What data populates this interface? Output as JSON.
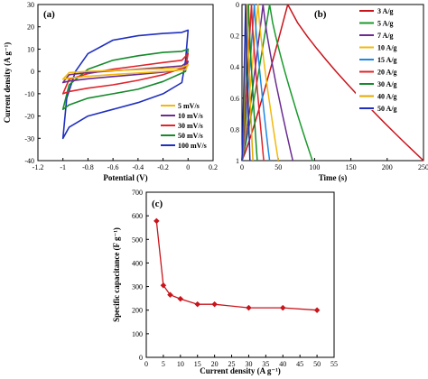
{
  "chart_data": [
    {
      "id": "a",
      "type": "line",
      "panel_label": "(a)",
      "xlabel": "Potential (V)",
      "ylabel": "Current density (A g⁻¹)",
      "xlim": [
        -1.2,
        0.2
      ],
      "ylim": [
        -40,
        30
      ],
      "xticks": [
        -1.2,
        -1.0,
        -0.8,
        -0.6,
        -0.4,
        -0.2,
        0.0,
        0.2
      ],
      "xticklabels": [
        "-1.2",
        "-1",
        "-0.8",
        "-0.6",
        "-0.4",
        "-0.2",
        "0",
        "0.2"
      ],
      "yticks": [
        -40,
        -30,
        -20,
        -10,
        0,
        10,
        20,
        30
      ],
      "yticklabels": [
        "-40",
        "-30",
        "-20",
        "-10",
        "0",
        "10",
        "20",
        "30"
      ],
      "legend_position": "bottom-right",
      "series": [
        {
          "name": "5 mV/s",
          "color": "#f2b90c",
          "top": [
            [
              -1.0,
              -3.5
            ],
            [
              -0.95,
              -0.5
            ],
            [
              -0.8,
              0.0
            ],
            [
              -0.6,
              0.4
            ],
            [
              -0.4,
              0.8
            ],
            [
              -0.2,
              1.2
            ],
            [
              -0.05,
              1.8
            ],
            [
              0.0,
              3.0
            ]
          ],
          "bottom": [
            [
              0.0,
              3.0
            ],
            [
              -0.02,
              0.8
            ],
            [
              -0.2,
              0.0
            ],
            [
              -0.4,
              -0.7
            ],
            [
              -0.6,
              -1.4
            ],
            [
              -0.8,
              -2.2
            ],
            [
              -0.95,
              -3.0
            ],
            [
              -1.0,
              -3.5
            ]
          ]
        },
        {
          "name": "10 mV/s",
          "color": "#6a2c91",
          "top": [
            [
              -1.0,
              -5.0
            ],
            [
              -0.95,
              -1.5
            ],
            [
              -0.8,
              -0.5
            ],
            [
              -0.6,
              0.3
            ],
            [
              -0.4,
              1.0
            ],
            [
              -0.2,
              1.8
            ],
            [
              -0.05,
              2.5
            ],
            [
              0.0,
              4.5
            ]
          ],
          "bottom": [
            [
              0.0,
              4.5
            ],
            [
              -0.02,
              1.0
            ],
            [
              -0.2,
              -0.3
            ],
            [
              -0.4,
              -1.3
            ],
            [
              -0.6,
              -2.3
            ],
            [
              -0.8,
              -3.3
            ],
            [
              -0.95,
              -4.3
            ],
            [
              -1.0,
              -5.0
            ]
          ]
        },
        {
          "name": "30 mV/s",
          "color": "#e0242b",
          "top": [
            [
              -1.0,
              -10.0
            ],
            [
              -0.95,
              -3.5
            ],
            [
              -0.8,
              -1.0
            ],
            [
              -0.6,
              1.0
            ],
            [
              -0.4,
              2.5
            ],
            [
              -0.2,
              4.0
            ],
            [
              -0.05,
              5.0
            ],
            [
              0.0,
              8.0
            ]
          ],
          "bottom": [
            [
              0.0,
              8.0
            ],
            [
              -0.02,
              2.0
            ],
            [
              -0.2,
              -1.5
            ],
            [
              -0.4,
              -4.0
            ],
            [
              -0.6,
              -6.0
            ],
            [
              -0.8,
              -7.5
            ],
            [
              -0.95,
              -9.0
            ],
            [
              -1.0,
              -10.0
            ]
          ]
        },
        {
          "name": "50 mV/s",
          "color": "#158a2b",
          "top": [
            [
              -1.0,
              -17.0
            ],
            [
              -0.95,
              -6.0
            ],
            [
              -0.8,
              1.0
            ],
            [
              -0.6,
              5.0
            ],
            [
              -0.4,
              7.0
            ],
            [
              -0.2,
              8.5
            ],
            [
              -0.05,
              9.0
            ],
            [
              0.0,
              10.0
            ]
          ],
          "bottom": [
            [
              0.0,
              10.0
            ],
            [
              -0.02,
              0.0
            ],
            [
              -0.2,
              -4.5
            ],
            [
              -0.4,
              -8.0
            ],
            [
              -0.6,
              -10.0
            ],
            [
              -0.8,
              -12.0
            ],
            [
              -0.95,
              -15.0
            ],
            [
              -1.0,
              -17.0
            ]
          ]
        },
        {
          "name": "100 mV/s",
          "color": "#1f2fbf",
          "top": [
            [
              -1.0,
              -30.0
            ],
            [
              -0.97,
              -12.0
            ],
            [
              -0.9,
              0.0
            ],
            [
              -0.8,
              8.0
            ],
            [
              -0.6,
              14.0
            ],
            [
              -0.4,
              16.0
            ],
            [
              -0.2,
              17.0
            ],
            [
              -0.05,
              17.5
            ],
            [
              0.0,
              18.5
            ]
          ],
          "bottom": [
            [
              0.0,
              18.5
            ],
            [
              -0.02,
              5.0
            ],
            [
              -0.05,
              -5.0
            ],
            [
              -0.2,
              -10.0
            ],
            [
              -0.4,
              -14.0
            ],
            [
              -0.6,
              -17.0
            ],
            [
              -0.8,
              -20.0
            ],
            [
              -0.95,
              -25.0
            ],
            [
              -1.0,
              -30.0
            ]
          ]
        }
      ]
    },
    {
      "id": "b",
      "type": "line",
      "panel_label": "(b)",
      "xlabel": "Time (s)",
      "ylabel": "",
      "xlim": [
        0,
        250
      ],
      "ylim": [
        -1,
        0
      ],
      "y_inverted": true,
      "xticks": [
        0,
        50,
        100,
        150,
        200,
        250
      ],
      "xticklabels": [
        "0",
        "50",
        "100",
        "150",
        "200",
        "250"
      ],
      "yticks": [
        0,
        -0.2,
        -0.4,
        -0.6,
        -0.8,
        -1.0
      ],
      "yticklabels": [
        "0",
        "0.2",
        "0.4",
        "0.6",
        "0.8",
        "1"
      ],
      "legend_position": "right",
      "series": [
        {
          "name": "3 A/g",
          "color": "#c8141b",
          "peak": 63,
          "end": 250
        },
        {
          "name": "5 A/g",
          "color": "#1a9a2c",
          "peak": 38,
          "end": 97
        },
        {
          "name": "7 A/g",
          "color": "#6a2c91",
          "peak": 29,
          "end": 70
        },
        {
          "name": "10 A/g",
          "color": "#f2b90c",
          "peak": 22,
          "end": 50
        },
        {
          "name": "15 A/g",
          "color": "#1e88e5",
          "peak": 17,
          "end": 38
        },
        {
          "name": "20 A/g",
          "color": "#e0242b",
          "peak": 13,
          "end": 30
        },
        {
          "name": "30 A/g",
          "color": "#158a2b",
          "peak": 9,
          "end": 21
        },
        {
          "name": "40 A/g",
          "color": "#e6a800",
          "peak": 7,
          "end": 15
        },
        {
          "name": "50 A/g",
          "color": "#1f2fbf",
          "peak": 5,
          "end": 11
        }
      ]
    },
    {
      "id": "c",
      "type": "line",
      "panel_label": "(c)",
      "xlabel": "Current density (A g⁻¹)",
      "ylabel": "Specific capacitance (F g⁻¹)",
      "xlim": [
        0,
        55
      ],
      "ylim": [
        0,
        700
      ],
      "xticks": [
        0,
        5,
        10,
        15,
        20,
        25,
        30,
        35,
        40,
        45,
        50,
        55
      ],
      "xticklabels": [
        "0",
        "5",
        "10",
        "15",
        "20",
        "25",
        "30",
        "35",
        "40",
        "45",
        "50",
        "55"
      ],
      "yticks": [
        0,
        100,
        200,
        300,
        400,
        500,
        600,
        700
      ],
      "yticklabels": [
        "0",
        "100",
        "200",
        "300",
        "400",
        "500",
        "600",
        "700"
      ],
      "color": "#c8141b",
      "x": [
        3,
        5,
        7,
        10,
        15,
        20,
        30,
        40,
        50
      ],
      "y": [
        578,
        305,
        265,
        248,
        225,
        225,
        210,
        210,
        200
      ]
    }
  ]
}
